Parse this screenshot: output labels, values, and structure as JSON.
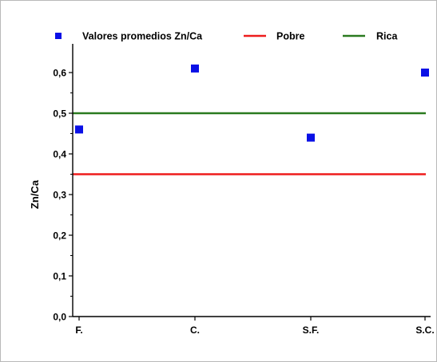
{
  "chart_data": {
    "type": "scatter",
    "title": "",
    "xlabel": "",
    "ylabel": "Zn/Ca",
    "categories": [
      "F.",
      "C.",
      "S.F.",
      "S.C."
    ],
    "ylim": [
      0.0,
      0.65
    ],
    "yticks": [
      "0,0",
      "0,1",
      "0,2",
      "0,3",
      "0,4",
      "0,5",
      "0,6"
    ],
    "ytick_values": [
      0.0,
      0.1,
      0.2,
      0.3,
      0.4,
      0.5,
      0.6
    ],
    "grid": false,
    "legend_position": "top",
    "series": [
      {
        "name": "Valores promedios Zn/Ca",
        "kind": "points",
        "marker": "square",
        "color": "#0a10e6",
        "values": [
          0.46,
          0.61,
          0.44,
          0.6
        ]
      },
      {
        "name": "Pobre",
        "kind": "hline",
        "color": "#ee1c1c",
        "value": 0.35
      },
      {
        "name": "Rica",
        "kind": "hline",
        "color": "#2a7a1f",
        "value": 0.5
      }
    ]
  }
}
